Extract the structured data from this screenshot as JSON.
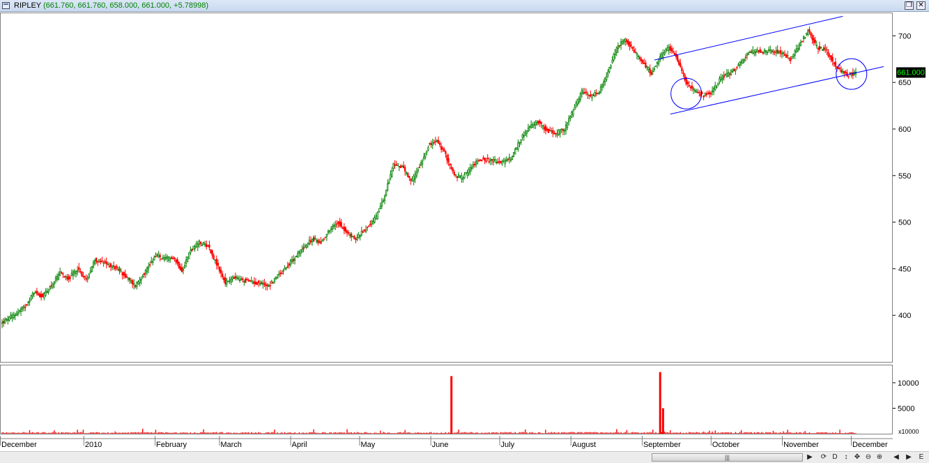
{
  "window": {
    "symbol": "RIPLEY",
    "values": "(661.760, 661.760, 658.000, 661.000, +5.78998)",
    "restore_glyph": "❐",
    "close_glyph": "✕"
  },
  "price_label": "661.000",
  "volume_multiplier_label": "x10000",
  "scrollbar": {
    "thumb_grip": "|||",
    "buttons": [
      "▶",
      "⟳",
      "D",
      "↕",
      "✥",
      "⊖",
      "⊕",
      "◀",
      "▶",
      "E"
    ]
  },
  "colors": {
    "up": "#008000",
    "down": "#ff0000",
    "trendline": "#0000ff",
    "price_label_bg": "#000000",
    "price_label_fg": "#00ff00"
  },
  "chart_data": {
    "type": "candlestick",
    "price_axis": {
      "min": 350,
      "max": 725,
      "ticks": [
        400,
        450,
        500,
        550,
        600,
        650,
        700
      ]
    },
    "volume_axis": {
      "min": 0,
      "max": 13000,
      "ticks": [
        5000,
        10000
      ],
      "unit_label": "x10000"
    },
    "x_axis_labels": [
      "December",
      "2010",
      "February",
      "March",
      "April",
      "May",
      "June",
      "July",
      "August",
      "September",
      "October",
      "November",
      "December"
    ],
    "close_path": [
      [
        0,
        392
      ],
      [
        8,
        400
      ],
      [
        16,
        410
      ],
      [
        22,
        425
      ],
      [
        28,
        420
      ],
      [
        34,
        432
      ],
      [
        40,
        445
      ],
      [
        46,
        440
      ],
      [
        52,
        450
      ],
      [
        58,
        438
      ],
      [
        64,
        460
      ],
      [
        72,
        455
      ],
      [
        80,
        450
      ],
      [
        86,
        440
      ],
      [
        92,
        432
      ],
      [
        100,
        450
      ],
      [
        106,
        465
      ],
      [
        112,
        460
      ],
      [
        118,
        463
      ],
      [
        124,
        448
      ],
      [
        130,
        470
      ],
      [
        136,
        478
      ],
      [
        142,
        475
      ],
      [
        148,
        455
      ],
      [
        154,
        435
      ],
      [
        160,
        440
      ],
      [
        168,
        437
      ],
      [
        176,
        435
      ],
      [
        184,
        432
      ],
      [
        190,
        442
      ],
      [
        196,
        452
      ],
      [
        202,
        462
      ],
      [
        208,
        473
      ],
      [
        214,
        482
      ],
      [
        220,
        478
      ],
      [
        226,
        492
      ],
      [
        232,
        500
      ],
      [
        238,
        488
      ],
      [
        244,
        482
      ],
      [
        252,
        495
      ],
      [
        258,
        505
      ],
      [
        264,
        528
      ],
      [
        270,
        562
      ],
      [
        276,
        560
      ],
      [
        282,
        543
      ],
      [
        288,
        560
      ],
      [
        294,
        582
      ],
      [
        300,
        587
      ],
      [
        306,
        572
      ],
      [
        312,
        550
      ],
      [
        318,
        548
      ],
      [
        324,
        560
      ],
      [
        330,
        568
      ],
      [
        338,
        566
      ],
      [
        346,
        564
      ],
      [
        352,
        570
      ],
      [
        358,
        590
      ],
      [
        364,
        602
      ],
      [
        370,
        608
      ],
      [
        376,
        598
      ],
      [
        382,
        595
      ],
      [
        388,
        600
      ],
      [
        394,
        620
      ],
      [
        400,
        640
      ],
      [
        406,
        635
      ],
      [
        412,
        640
      ],
      [
        418,
        660
      ],
      [
        424,
        688
      ],
      [
        430,
        696
      ],
      [
        436,
        683
      ],
      [
        442,
        672
      ],
      [
        448,
        660
      ],
      [
        454,
        676
      ],
      [
        460,
        688
      ],
      [
        466,
        675
      ],
      [
        472,
        650
      ],
      [
        478,
        640
      ],
      [
        484,
        636
      ],
      [
        490,
        640
      ],
      [
        496,
        655
      ],
      [
        502,
        660
      ],
      [
        508,
        668
      ],
      [
        514,
        680
      ],
      [
        520,
        684
      ],
      [
        526,
        683
      ],
      [
        532,
        684
      ],
      [
        538,
        682
      ],
      [
        544,
        675
      ],
      [
        550,
        690
      ],
      [
        556,
        705
      ],
      [
        562,
        688
      ],
      [
        568,
        685
      ],
      [
        574,
        670
      ],
      [
        580,
        660
      ],
      [
        585,
        658
      ],
      [
        589,
        661
      ]
    ],
    "volume_spikes": [
      {
        "day": 310,
        "value": 11300
      },
      {
        "day": 454,
        "value": 12100
      },
      {
        "day": 456,
        "value": 5000
      }
    ],
    "annotations": {
      "channel_upper": [
        [
          450,
          674
        ],
        [
          580,
          721
        ]
      ],
      "channel_lower": [
        [
          461,
          616
        ],
        [
          589,
          660
        ]
      ],
      "circles": [
        {
          "day": 472,
          "price": 638
        },
        {
          "day": 586,
          "price": 659
        }
      ]
    },
    "last": {
      "open": 661.76,
      "high": 661.76,
      "low": 658.0,
      "close": 661.0,
      "change": 5.78998
    }
  }
}
